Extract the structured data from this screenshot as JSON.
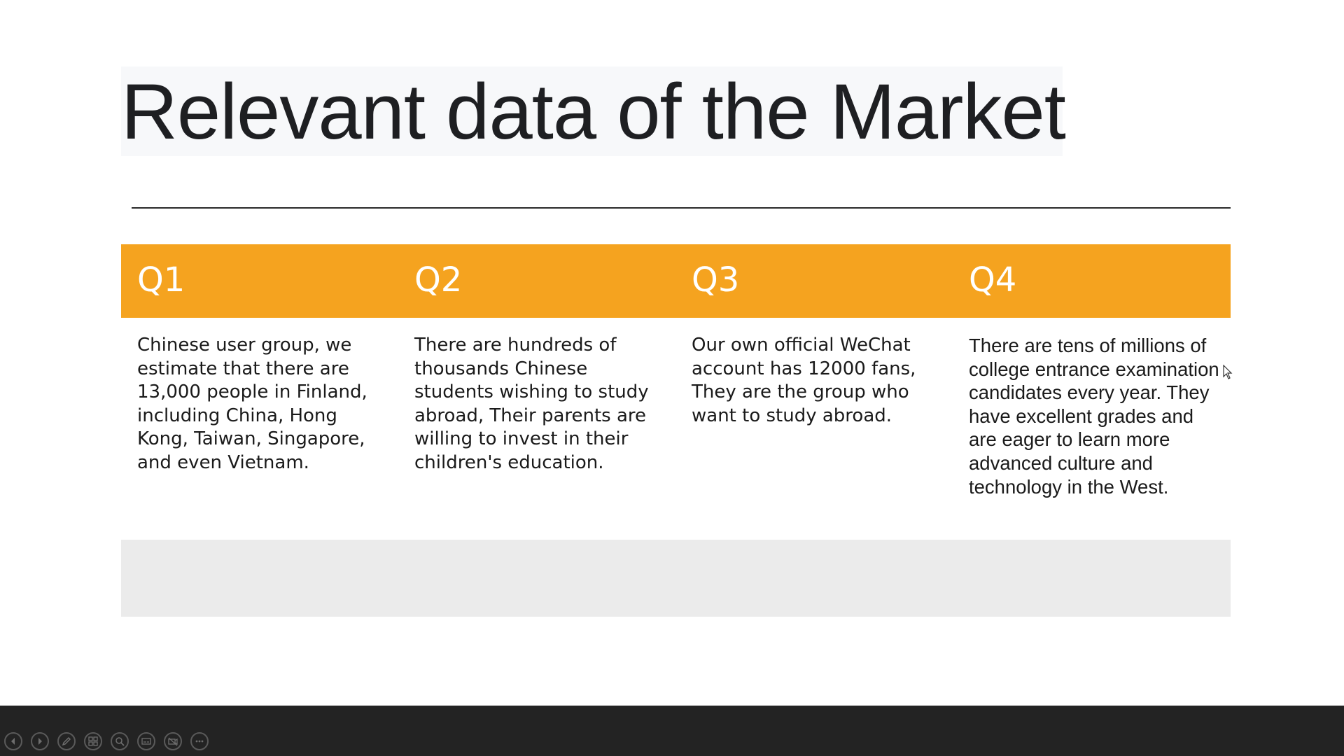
{
  "slide": {
    "title": "Relevant data of the Market",
    "columns": [
      {
        "heading": "Q1",
        "body": "Chinese user group, we estimate that there are 13,000 people in Finland, including China, Hong Kong, Taiwan, Singapore, and even Vietnam."
      },
      {
        "heading": "Q2",
        "body": "There are hundreds of thousands Chinese students wishing to study abroad, Their parents are willing to invest in their children's education."
      },
      {
        "heading": "Q3",
        "body": "Our own official WeChat account has 12000 fans, They are the group who want to study abroad."
      },
      {
        "heading": "Q4",
        "body": "There are tens of millions of college entrance examination candidates every year. They have excellent grades and are eager to learn more advanced culture and technology in the West."
      }
    ]
  },
  "colors": {
    "header_band": "#f5a31f",
    "grey_band": "#ebebeb",
    "toolbar": "#232323"
  },
  "toolbar": {
    "buttons": [
      {
        "icon": "previous-icon"
      },
      {
        "icon": "next-icon"
      },
      {
        "icon": "pen-icon"
      },
      {
        "icon": "all-slides-icon"
      },
      {
        "icon": "zoom-icon"
      },
      {
        "icon": "subtitles-icon"
      },
      {
        "icon": "camera-off-icon"
      },
      {
        "icon": "more-options-icon"
      }
    ]
  }
}
